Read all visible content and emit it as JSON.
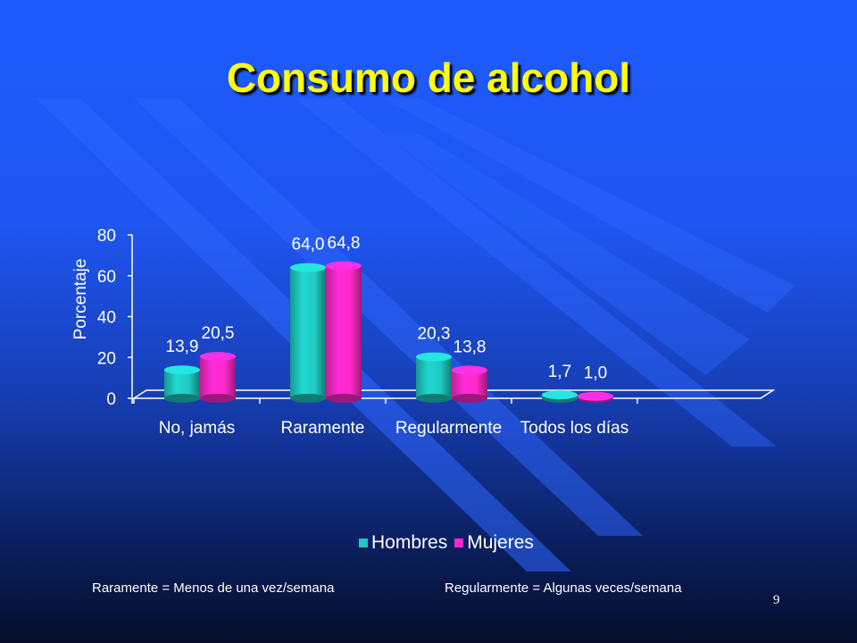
{
  "slide": {
    "title": "Consumo de alcohol",
    "footnote_left": "Raramente = Menos de una vez/semana",
    "footnote_right": "Regularmente = Algunas veces/semana",
    "page_number": "9"
  },
  "chart_data": {
    "type": "bar",
    "title": "",
    "xlabel": "",
    "ylabel": "Porcentaje",
    "ylim": [
      0,
      80
    ],
    "yticks": [
      "0",
      "20",
      "40",
      "60",
      "80"
    ],
    "categories": [
      "No, jamás",
      "Raramente",
      "Regularmente",
      "Todos los días"
    ],
    "series": [
      {
        "name": "Hombres",
        "values": [
          13.9,
          64.0,
          20.3,
          1.7
        ],
        "labels": [
          "13,9",
          "64,0",
          "20,3",
          "1,7"
        ],
        "color": "#1fc9c2"
      },
      {
        "name": "Mujeres",
        "values": [
          20.5,
          64.8,
          13.8,
          1.0
        ],
        "labels": [
          "20,5",
          "64,8",
          "13,8",
          "1,0"
        ],
        "color": "#ff29c8"
      }
    ],
    "grid": false,
    "legend_position": "bottom"
  }
}
